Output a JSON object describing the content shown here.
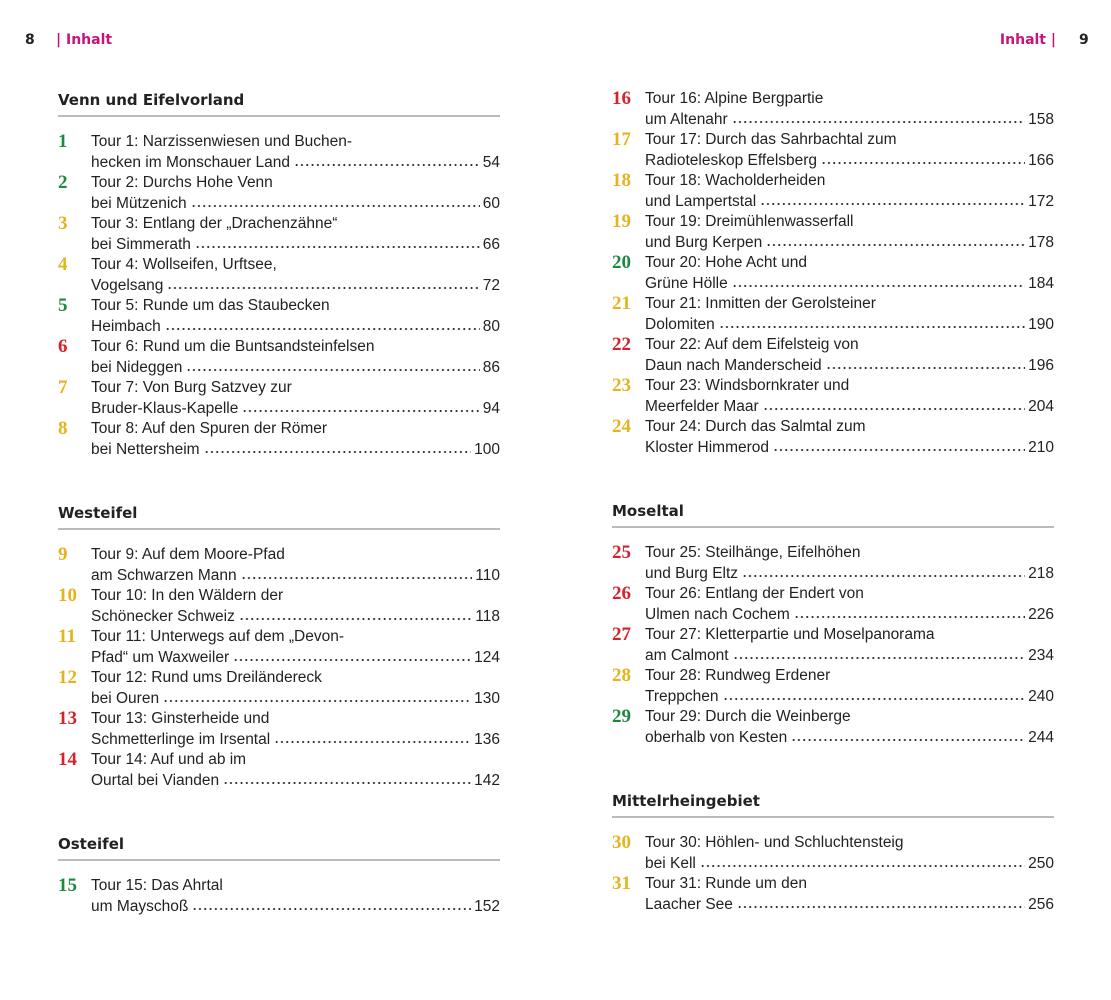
{
  "header": {
    "left_page": 8,
    "left_label": "| Inhalt",
    "right_label": "Inhalt |",
    "right_page": 9
  },
  "left_column": {
    "sections": [
      {
        "title": "Venn und Eifelvorland",
        "entries": [
          {
            "number": 1,
            "color": "#1b8a3e",
            "line1": "Tour 1: Narzissenwiesen und Buchen-",
            "line2": "hecken im Monschauer Land",
            "page": 54
          },
          {
            "number": 2,
            "color": "#1b8a3e",
            "line1": "Tour 2: Durchs Hohe Venn",
            "line2": "bei Mützenich",
            "page": 60
          },
          {
            "number": 3,
            "color": "#e5b31c",
            "line1": "Tour 3: Entlang der „Drachenzähne“",
            "line2": "bei Simmerath",
            "page": 66
          },
          {
            "number": 4,
            "color": "#e5b31c",
            "line1": "Tour 4: Wollseifen, Urftsee,",
            "line2": "Vogelsang",
            "page": 72
          },
          {
            "number": 5,
            "color": "#1b8a3e",
            "line1": "Tour 5: Runde um das Staubecken",
            "line2": "Heimbach",
            "page": 80
          },
          {
            "number": 6,
            "color": "#d3232b",
            "line1": "Tour 6: Rund um die Buntsandsteinfelsen",
            "line2": "bei Nideggen",
            "page": 86
          },
          {
            "number": 7,
            "color": "#e5b31c",
            "line1": "Tour 7: Von Burg Satzvey zur",
            "line2": "Bruder-Klaus-Kapelle",
            "page": 94
          },
          {
            "number": 8,
            "color": "#e5b31c",
            "line1": "Tour 8: Auf den Spuren der Römer",
            "line2": "bei Nettersheim",
            "page": 100
          }
        ]
      },
      {
        "title": "Westeifel",
        "entries": [
          {
            "number": 9,
            "color": "#e5b31c",
            "line1": "Tour 9: Auf dem Moore-Pfad",
            "line2": "am Schwarzen Mann",
            "page": 110
          },
          {
            "number": 10,
            "color": "#e5b31c",
            "line1": "Tour 10: In den Wäldern der",
            "line2": "Schönecker Schweiz",
            "page": 118
          },
          {
            "number": 11,
            "color": "#e5b31c",
            "line1": "Tour 11: Unterwegs auf dem „Devon-",
            "line2": "Pfad“ um Waxweiler",
            "page": 124
          },
          {
            "number": 12,
            "color": "#e5b31c",
            "line1": "Tour 12: Rund ums Dreiländereck",
            "line2": "bei Ouren",
            "page": 130
          },
          {
            "number": 13,
            "color": "#d3232b",
            "line1": "Tour 13: Ginsterheide und",
            "line2": "Schmetterlinge im Irsental",
            "page": 136
          },
          {
            "number": 14,
            "color": "#d3232b",
            "line1": "Tour 14: Auf und ab im",
            "line2": "Ourtal bei Vianden",
            "page": 142
          }
        ]
      },
      {
        "title": "Osteifel",
        "entries": [
          {
            "number": 15,
            "color": "#1b8a3e",
            "line1": "Tour 15: Das Ahrtal",
            "line2": "um Mayschoß",
            "page": 152
          }
        ]
      }
    ]
  },
  "right_column": {
    "sections": [
      {
        "entries": [
          {
            "number": 16,
            "color": "#d3232b",
            "line1": "Tour 16: Alpine Bergpartie",
            "line2": "um Altenahr",
            "page": 158
          },
          {
            "number": 17,
            "color": "#e5b31c",
            "line1": "Tour 17: Durch das Sahrbachtal zum",
            "line2": "Radioteleskop Effelsberg",
            "page": 166
          },
          {
            "number": 18,
            "color": "#e5b31c",
            "line1": "Tour 18: Wacholderheiden",
            "line2": "und Lampertstal",
            "page": 172
          },
          {
            "number": 19,
            "color": "#e5b31c",
            "line1": "Tour 19: Dreimühlenwasserfall",
            "line2": "und Burg Kerpen",
            "page": 178
          },
          {
            "number": 20,
            "color": "#1b8a3e",
            "line1": "Tour 20: Hohe Acht und",
            "line2": "Grüne Hölle",
            "page": 184
          },
          {
            "number": 21,
            "color": "#e5b31c",
            "line1": "Tour 21: Inmitten der Gerolsteiner",
            "line2": "Dolomiten",
            "page": 190
          },
          {
            "number": 22,
            "color": "#d3232b",
            "line1": "Tour 22: Auf dem Eifelsteig von",
            "line2": "Daun nach Manderscheid",
            "page": 196
          },
          {
            "number": 23,
            "color": "#e5b31c",
            "line1": "Tour 23: Windsbornkrater und",
            "line2": "Meerfelder Maar",
            "page": 204
          },
          {
            "number": 24,
            "color": "#e5b31c",
            "line1": "Tour 24: Durch das Salmtal zum",
            "line2": "Kloster Himmerod",
            "page": 210
          }
        ]
      },
      {
        "title": "Moseltal",
        "entries": [
          {
            "number": 25,
            "color": "#d3232b",
            "line1": "Tour 25: Steilhänge, Eifelhöhen",
            "line2": "und Burg Eltz",
            "page": 218
          },
          {
            "number": 26,
            "color": "#d3232b",
            "line1": "Tour 26: Entlang der Endert von",
            "line2": "Ulmen nach Cochem",
            "page": 226
          },
          {
            "number": 27,
            "color": "#d3232b",
            "line1": "Tour 27: Kletterpartie und Moselpanorama",
            "line2": "am Calmont",
            "page": 234
          },
          {
            "number": 28,
            "color": "#e5b31c",
            "line1": "Tour 28: Rundweg Erdener",
            "line2": "Treppchen",
            "page": 240
          },
          {
            "number": 29,
            "color": "#1b8a3e",
            "line1": "Tour 29: Durch die Weinberge",
            "line2": "oberhalb von Kesten",
            "page": 244
          }
        ]
      },
      {
        "title": "Mittelrheingebiet",
        "entries": [
          {
            "number": 30,
            "color": "#e5b31c",
            "line1": "Tour 30: Höhlen- und Schluchtensteig",
            "line2": "bei Kell",
            "page": 250
          },
          {
            "number": 31,
            "color": "#e5b31c",
            "line1": "Tour 31: Runde um den",
            "line2": "Laacher See",
            "page": 256
          }
        ]
      }
    ]
  }
}
